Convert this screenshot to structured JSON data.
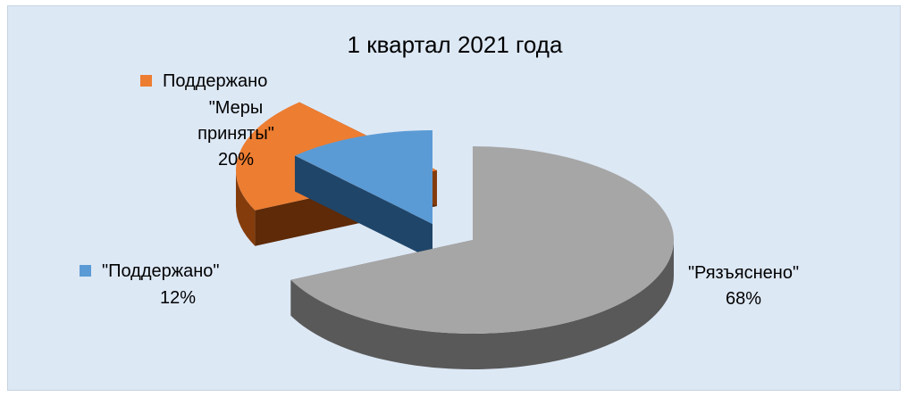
{
  "chart_data": {
    "type": "pie",
    "title": "1 квартал 2021 года",
    "slices": [
      {
        "name": "\"Рязъяснено\"",
        "value": 68,
        "percent_label": "68%",
        "color": "#a6a6a6",
        "exploded": false
      },
      {
        "name": "Поддержано \"Меры приняты\"",
        "value": 20,
        "percent_label": "20%",
        "color": "#ed7d31",
        "exploded": true
      },
      {
        "name": "\"Поддержано\"",
        "value": 12,
        "percent_label": "12%",
        "color": "#5b9bd5",
        "exploded": true
      }
    ],
    "style": "3d-exploded-pie"
  },
  "labels": {
    "orange_line1": "Поддержано",
    "orange_line2": "\"Меры",
    "orange_line3": "приняты\"",
    "orange_pct": "20%",
    "blue_name": "\"Поддержано\"",
    "blue_pct": "12%",
    "gray_name": "\"Рязъяснено\"",
    "gray_pct": "68%"
  }
}
